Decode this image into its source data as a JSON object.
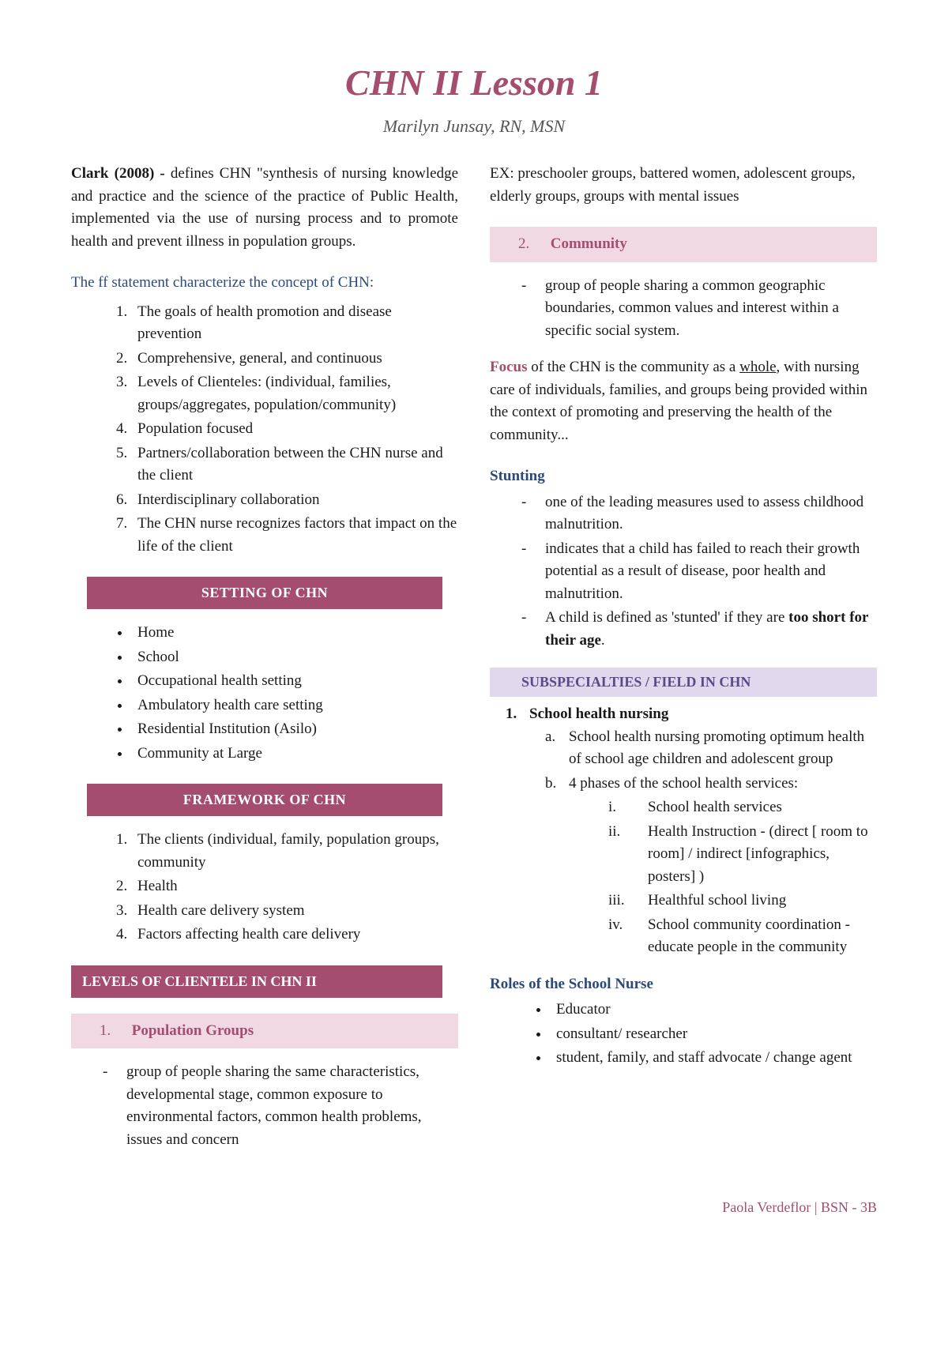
{
  "colors": {
    "maroon": "#a54d6f",
    "blue": "#2a4a7a",
    "pink_bg": "#f0d9e3",
    "lavender_bg": "#e0d9ed",
    "lavender_text": "#5a4a8a"
  },
  "title": "CHN II Lesson 1",
  "subtitle": "Marilyn Junsay, RN, MSN",
  "intro": {
    "author": "Clark (2008) - ",
    "text": " defines CHN \"synthesis of nursing knowledge and practice and the science of the practice of Public Health, implemented via the use of nursing process and to promote health and prevent illness in population groups."
  },
  "concept_head": "The ff statement characterize the concept of CHN:",
  "concept_list": [
    "The goals of health promotion and disease prevention",
    "Comprehensive, general, and continuous",
    "Levels of Clienteles: (individual, families, groups/aggregates, population/community)",
    "Population focused",
    "Partners/collaboration between the CHN nurse and the client",
    "Interdisciplinary collaboration",
    "The CHN nurse recognizes factors that impact on the life of the client"
  ],
  "setting_banner": "SETTING OF CHN",
  "settings": [
    "Home",
    "School",
    "Occupational health setting",
    "Ambulatory health care setting",
    "Residential Institution (Asilo)",
    "Community at Large"
  ],
  "framework_banner": "FRAMEWORK OF CHN",
  "framework": [
    "The clients (individual, family, population groups, community",
    "Health",
    "Health care delivery system",
    "Factors affecting health care delivery"
  ],
  "levels_banner": "LEVELS OF CLIENTELE IN CHN II",
  "pop_box": {
    "num": "1.",
    "label": "Population Groups"
  },
  "pop_def": "group of people sharing the same characteristics, developmental stage, common exposure to environmental factors, common health problems, issues and concern",
  "ex_line": "EX: preschooler groups, battered women, adolescent groups, elderly groups, groups with mental issues",
  "comm_box": {
    "num": "2.",
    "label": "Community"
  },
  "comm_def": "group of people sharing a common geographic boundaries, common values and interest within a specific social system.",
  "focus": {
    "word": "Focus",
    "p1": " of the CHN is the community as a ",
    "whole": "whole",
    "p2": ", with nursing care of individuals, families, and groups being provided within the context of promoting and preserving the health of the community..."
  },
  "stunting_head": "Stunting",
  "stunting": [
    {
      "pre": "one of the leading measures used to assess childhood malnutrition.",
      "bold": ""
    },
    {
      "pre": "indicates that a child has failed to reach their growth potential as a result of disease, poor health and malnutrition.",
      "bold": ""
    },
    {
      "pre": "A child is defined as 'stunted' if they are ",
      "bold": "too short for their age",
      "post": "."
    }
  ],
  "subspec_banner": "SUBSPECIALTIES / FIELD  IN CHN",
  "subspec": {
    "num": "1.",
    "label": "School health nursing",
    "a": "School health nursing promoting optimum health of school age children and adolescent group",
    "b": "4 phases of the school health services:",
    "roman": [
      "School health services",
      "Health Instruction  - (direct [ room to room] / indirect [infographics, posters] )",
      "Healthful school living",
      "School community coordination - educate people in the community"
    ]
  },
  "roles_head": "Roles of the School Nurse",
  "roles": [
    "Educator",
    "consultant/ researcher",
    "student, family, and staff advocate / change agent"
  ],
  "footer": "Paola Verdeflor |  BSN - 3B"
}
